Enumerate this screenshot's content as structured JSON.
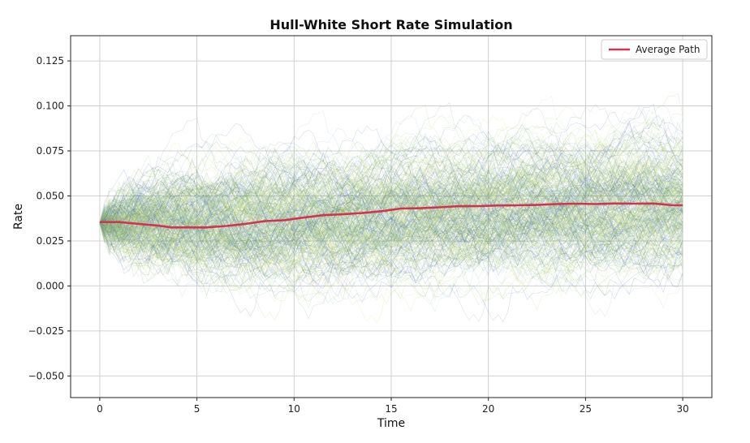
{
  "chart_data": {
    "type": "line",
    "title": "Hull-White Short Rate Simulation",
    "xlabel": "Time",
    "ylabel": "Rate",
    "xlim": [
      -1.5,
      31.5
    ],
    "ylim": [
      -0.062,
      0.139
    ],
    "x_ticks": [
      0,
      5,
      10,
      15,
      20,
      25,
      30
    ],
    "x_tick_labels": [
      "0",
      "5",
      "10",
      "15",
      "20",
      "25",
      "30"
    ],
    "y_ticks": [
      -0.05,
      -0.025,
      0.0,
      0.025,
      0.05,
      0.075,
      0.1,
      0.125
    ],
    "y_tick_labels": [
      "−0.050",
      "−0.025",
      "0.000",
      "0.025",
      "0.050",
      "0.075",
      "0.100",
      "0.125"
    ],
    "grid": true,
    "legend_position": "top-right",
    "simulated_paths": {
      "count": 1000,
      "initial_rate": 0.035,
      "mean_envelope": {
        "x": [
          0,
          5,
          10,
          15,
          20,
          25,
          30
        ],
        "low": [
          0.035,
          0.005,
          -0.003,
          -0.005,
          -0.006,
          -0.006,
          -0.007
        ],
        "high": [
          0.035,
          0.063,
          0.08,
          0.087,
          0.092,
          0.095,
          0.097
        ]
      },
      "colors": [
        "#3b5ba5",
        "#7fb0d0",
        "#8fc04f",
        "#c6d84a",
        "#5a8f7b",
        "#a9c964"
      ]
    },
    "series": [
      {
        "name": "Average Path",
        "color": "#d1344f",
        "x": [
          0,
          1,
          2,
          3,
          3.7,
          4.5,
          5.5,
          6.5,
          7.5,
          8.5,
          9.5,
          10.5,
          11.5,
          12.5,
          13.5,
          14.5,
          15.5,
          16.5,
          17.5,
          18.5,
          19.5,
          20.5,
          21.5,
          22.5,
          23.5,
          24.5,
          25.5,
          26.5,
          27.5,
          28.5,
          29.5,
          30
        ],
        "y": [
          0.0355,
          0.0355,
          0.0345,
          0.0335,
          0.0325,
          0.0325,
          0.0325,
          0.0333,
          0.0345,
          0.036,
          0.0365,
          0.038,
          0.0393,
          0.0398,
          0.0405,
          0.0415,
          0.043,
          0.0432,
          0.0437,
          0.0443,
          0.0443,
          0.0447,
          0.0448,
          0.045,
          0.0455,
          0.0457,
          0.0455,
          0.0458,
          0.0457,
          0.0458,
          0.0448,
          0.0448
        ]
      }
    ]
  }
}
